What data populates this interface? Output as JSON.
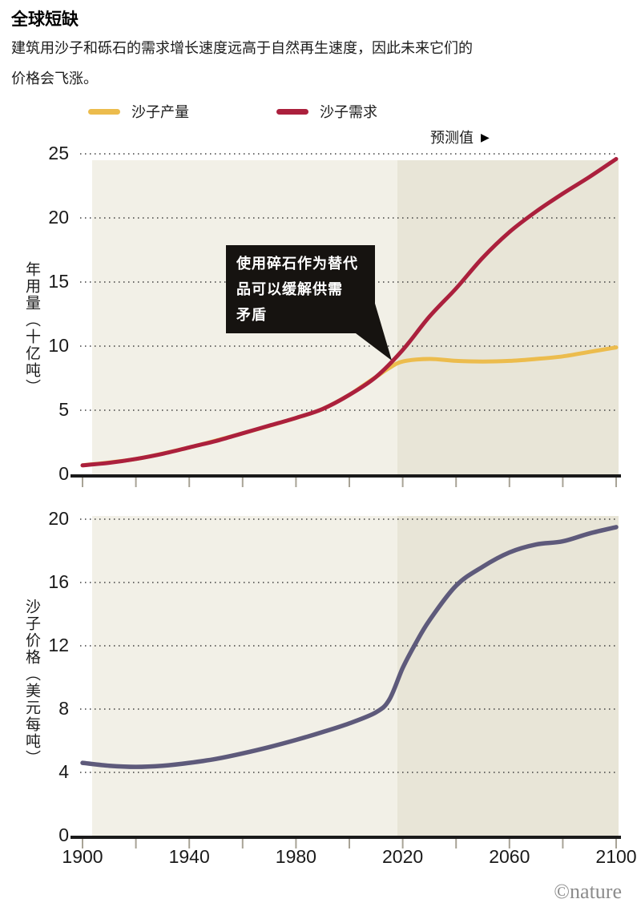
{
  "header": {
    "title": "全球短缺",
    "subtitle_line1": "建筑用沙子和砾石的需求增长速度远高于自然再生速度，因此未来它们的",
    "subtitle_line2": "价格会飞涨。"
  },
  "legend": {
    "items": [
      {
        "label": "沙子产量",
        "color": "#ecbc4d"
      },
      {
        "label": "沙子需求",
        "color": "#ab203d"
      }
    ]
  },
  "forecast": {
    "label": "预测值",
    "arrow": "▶"
  },
  "annotation": {
    "lines": [
      "使用碎石作为替代",
      "品可以缓解供需",
      "矛盾"
    ]
  },
  "footer": {
    "credit": "©nature"
  },
  "colors": {
    "demand": "#ab203d",
    "production": "#ecbc4d",
    "price": "#5e5a7b",
    "bg_history": "#f2f0e7",
    "bg_forecast": "#e8e5d7",
    "axis": "#1a1a1a",
    "grid": "#3f3f3f",
    "tick": "#a8a396",
    "annotation_bg": "#161310",
    "annotation_text": "#ffffff"
  },
  "chart_data": [
    {
      "type": "line",
      "title": "",
      "xlabel": "",
      "ylabel": "年用量（十亿吨）",
      "xlim": [
        1900,
        2100
      ],
      "ylim": [
        0,
        25
      ],
      "y_ticks": [
        0,
        5,
        10,
        15,
        20,
        25
      ],
      "x_ticks_labeled": [
        1900,
        1940,
        1980,
        2020,
        2060,
        2100
      ],
      "x_minor_tick_every": 20,
      "grid": "dotted-horizontal",
      "forecast_start_year": 2018,
      "legend_position": "top",
      "series": [
        {
          "name": "沙子产量",
          "color": "#ecbc4d",
          "x": [
            1900,
            1920,
            1940,
            1960,
            1980,
            1990,
            2000,
            2005,
            2010,
            2015,
            2020,
            2030,
            2040,
            2050,
            2060,
            2070,
            2080,
            2090,
            2100
          ],
          "values": [
            0.7,
            1.2,
            2.1,
            3.2,
            4.4,
            5.1,
            6.2,
            6.9,
            7.6,
            8.3,
            8.8,
            9.0,
            8.85,
            8.8,
            8.85,
            9.0,
            9.2,
            9.55,
            9.9
          ]
        },
        {
          "name": "沙子需求",
          "color": "#ab203d",
          "x": [
            1900,
            1910,
            1920,
            1930,
            1940,
            1950,
            1960,
            1970,
            1980,
            1990,
            2000,
            2010,
            2020,
            2030,
            2040,
            2050,
            2060,
            2070,
            2080,
            2090,
            2100
          ],
          "values": [
            0.7,
            0.9,
            1.2,
            1.6,
            2.1,
            2.6,
            3.2,
            3.8,
            4.4,
            5.1,
            6.2,
            7.6,
            9.7,
            12.3,
            14.5,
            16.9,
            18.9,
            20.5,
            21.9,
            23.2,
            24.6
          ]
        }
      ]
    },
    {
      "type": "line",
      "title": "",
      "xlabel": "",
      "ylabel": "沙子价格（美元每吨）",
      "xlim": [
        1900,
        2100
      ],
      "ylim": [
        0,
        20
      ],
      "y_ticks": [
        0,
        4,
        8,
        12,
        16,
        20
      ],
      "x_ticks_labeled": [
        1900,
        1940,
        1980,
        2020,
        2060,
        2100
      ],
      "x_minor_tick_every": 20,
      "grid": "dotted-horizontal",
      "forecast_start_year": 2018,
      "legend_position": "none",
      "series": [
        {
          "name": "沙子价格",
          "color": "#5e5a7b",
          "x": [
            1900,
            1910,
            1920,
            1930,
            1940,
            1950,
            1960,
            1970,
            1980,
            1990,
            2000,
            2010,
            2015,
            2020,
            2025,
            2030,
            2040,
            2050,
            2060,
            2070,
            2080,
            2090,
            2100
          ],
          "values": [
            4.6,
            4.42,
            4.35,
            4.42,
            4.6,
            4.85,
            5.2,
            5.6,
            6.05,
            6.55,
            7.1,
            7.8,
            8.6,
            10.6,
            12.2,
            13.6,
            15.8,
            17.0,
            17.9,
            18.4,
            18.6,
            19.1,
            19.5
          ]
        }
      ]
    }
  ]
}
